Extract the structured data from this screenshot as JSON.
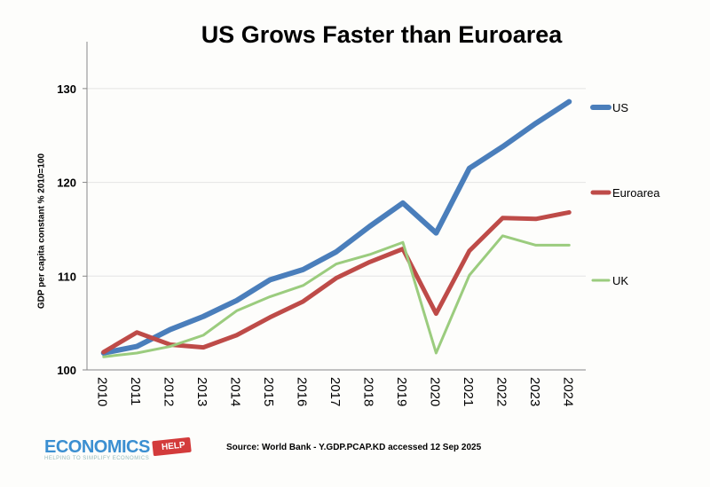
{
  "chart_data": {
    "type": "line",
    "title": "US Grows Faster than Euroarea",
    "ylabel": "GDP per capita constant % 2010=100",
    "xlabel": "",
    "ylim": [
      100,
      135
    ],
    "yticks": [
      100,
      110,
      120,
      130
    ],
    "grid": true,
    "legend_placement": "right",
    "categories": [
      "2010",
      "2011",
      "2012",
      "2013",
      "2014",
      "2015",
      "2016",
      "2017",
      "2018",
      "2019",
      "2020",
      "2021",
      "2022",
      "2023",
      "2024"
    ],
    "series": [
      {
        "name": "US",
        "color": "#4a7ebb",
        "values": [
          101.8,
          102.5,
          104.3,
          105.7,
          107.4,
          109.6,
          110.7,
          112.6,
          115.3,
          117.8,
          114.6,
          121.5,
          123.8,
          126.3,
          128.6
        ]
      },
      {
        "name": "Euroarea",
        "color": "#be4b48",
        "values": [
          101.9,
          104.0,
          102.7,
          102.4,
          103.7,
          105.6,
          107.3,
          109.8,
          111.5,
          112.9,
          106.0,
          112.7,
          116.2,
          116.1,
          116.8
        ]
      },
      {
        "name": "UK",
        "color": "#9bcc7e",
        "values": [
          101.4,
          101.8,
          102.5,
          103.7,
          106.3,
          107.8,
          109.0,
          111.3,
          112.3,
          113.6,
          101.8,
          110.1,
          114.3,
          113.3,
          113.3
        ]
      }
    ]
  },
  "source": "Source: World Bank - Y.GDP.PCAP.KD accessed 12 Sep 2025",
  "logo": {
    "main": "ECONOMICS",
    "help": "HELP",
    "tagline": "HELPING TO SIMPLIFY ECONOMICS"
  }
}
